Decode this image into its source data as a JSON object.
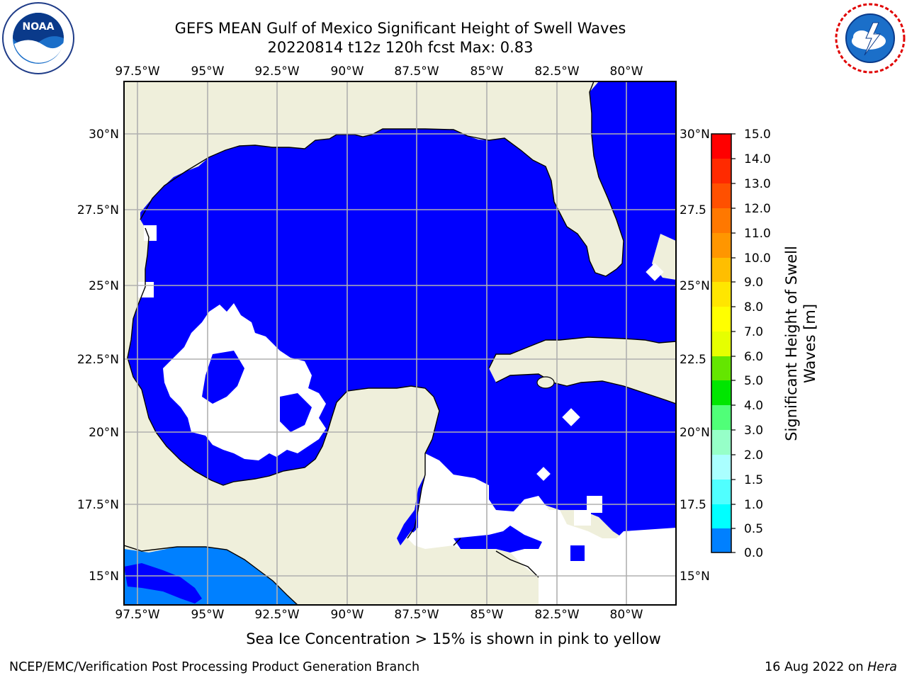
{
  "title": {
    "line1": "GEFS MEAN Gulf of Mexico Significant Height of Swell Waves",
    "line2": "20220814 t12z 120h fcst   Max: 0.83"
  },
  "logos": {
    "left": {
      "name": "noaa-logo",
      "text": "NOAA",
      "ring_text": "NATIONAL OCEANIC AND ATMOSPHERIC ADMINISTRATION · U.S. DEPARTMENT OF COMMERCE"
    },
    "right": {
      "name": "nws-logo",
      "ring_text": "NATIONAL WEATHER SERVICE"
    }
  },
  "map": {
    "lon_ticks": [
      "97.5°W",
      "95°W",
      "92.5°W",
      "90°W",
      "87.5°W",
      "85°W",
      "82.5°W",
      "80°W"
    ],
    "lat_ticks_left": [
      "30°N",
      "27.5°N",
      "25°N",
      "22.5°N",
      "20°N",
      "17.5°N",
      "15°N"
    ],
    "lat_ticks_right": [
      "30°N",
      "27.5",
      "25°N",
      "22.5",
      "20°N",
      "17.5",
      "15°N"
    ],
    "land_color": "#efefdb",
    "grid_color": "#b0b0b0"
  },
  "colorbar": {
    "label_line1": "Significant Height of Swell",
    "label_line2": "Waves [m]",
    "ticks": [
      "15.0",
      "14.0",
      "13.0",
      "12.0",
      "11.0",
      "10.0",
      "9.0",
      "8.0",
      "7.0",
      "6.0",
      "5.0",
      "4.0",
      "3.0",
      "2.0",
      "1.5",
      "1.0",
      "0.5",
      "0.0"
    ],
    "colors": [
      "#ff0000",
      "#ff2a00",
      "#ff5000",
      "#ff7800",
      "#ff9600",
      "#ffbe00",
      "#ffe600",
      "#ffff00",
      "#e6ff00",
      "#c8ff00",
      "#64e600",
      "#00e600",
      "#50ff78",
      "#96ffc8",
      "#aaffff",
      "#50ffff",
      "#00ffff",
      "#0080ff",
      "#0000ff"
    ]
  },
  "footer": {
    "note": "Sea Ice Concentration > 15% is shown in pink to yellow",
    "left": "NCEP/EMC/Verification Post Processing Product Generation Branch",
    "right_prefix": "16 Aug 2022 on ",
    "right_host": "Hera"
  }
}
